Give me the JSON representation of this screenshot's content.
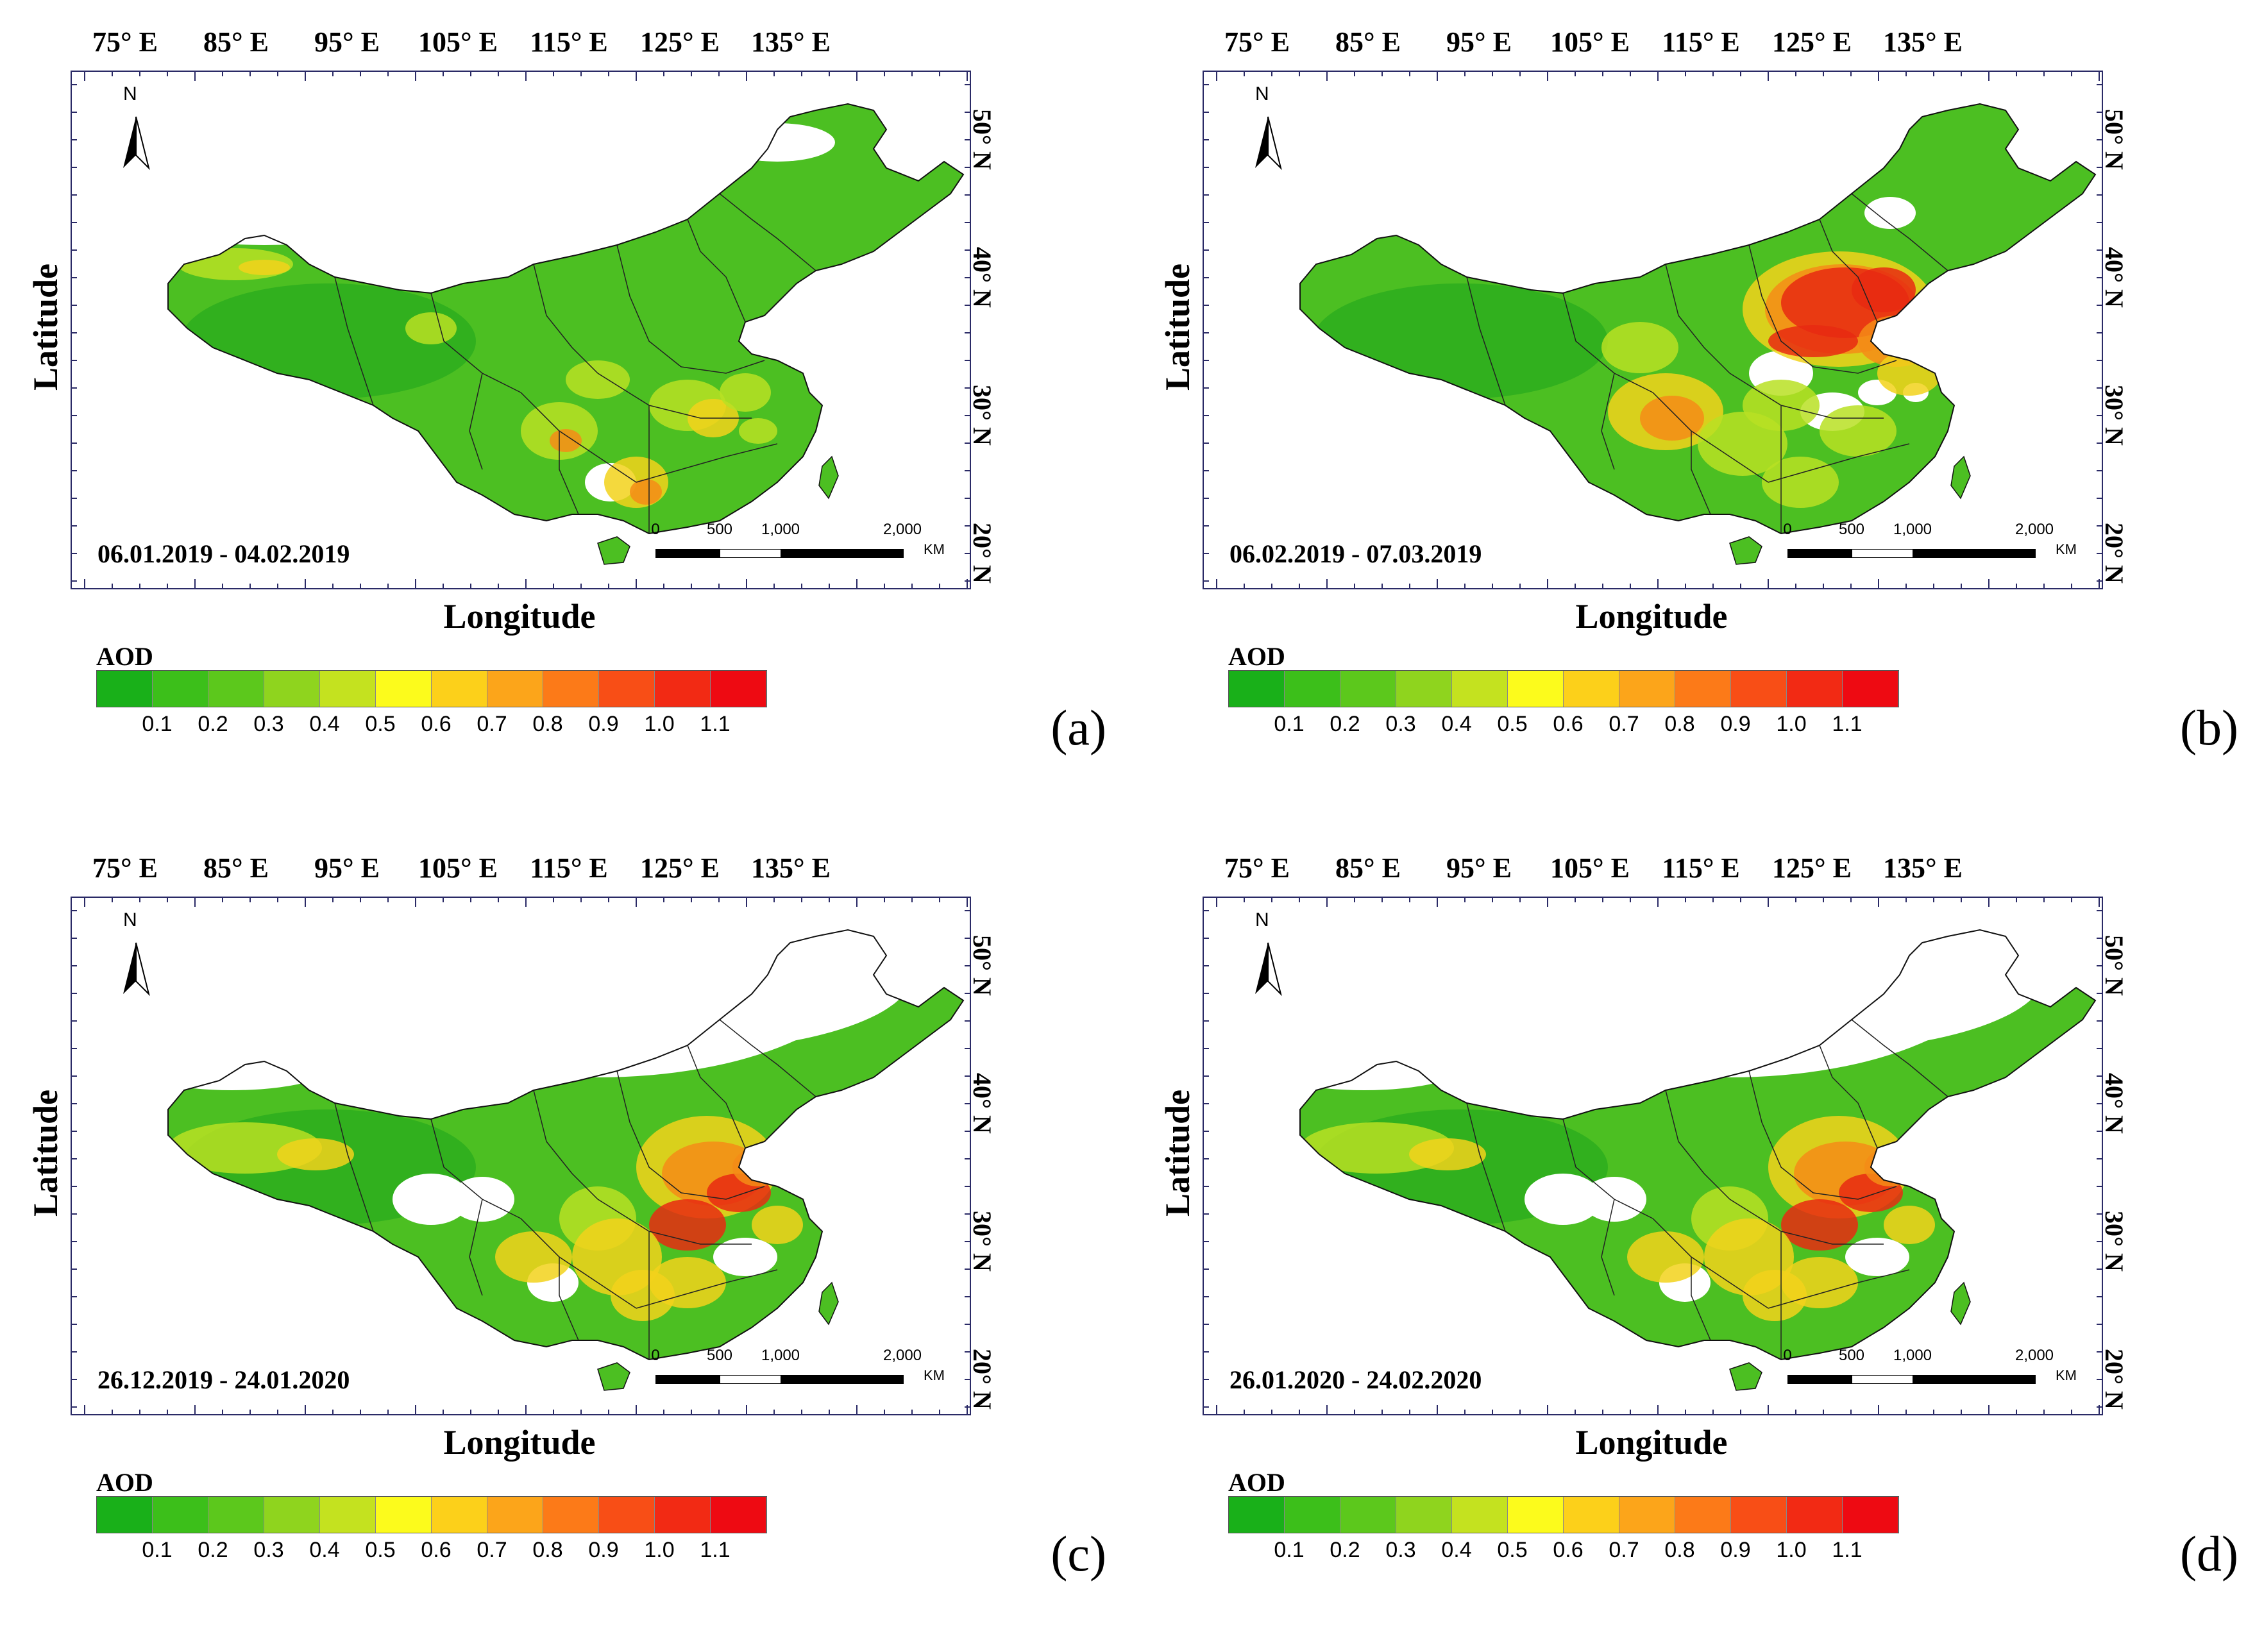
{
  "figure": {
    "lon_labels": [
      "75° E",
      "85° E",
      "95° E",
      "105° E",
      "115° E",
      "125° E",
      "135° E"
    ],
    "lat_labels": [
      "50° N",
      "40° N",
      "30° N",
      "20° N"
    ],
    "x_axis_title": "Longitude",
    "y_axis_title": "Latitude",
    "north_label": "N",
    "scale_labels": [
      "0",
      "500",
      "1,000",
      "2,000"
    ],
    "scale_unit": "KM",
    "legend_title": "AOD",
    "legend_ticks": [
      "0.1",
      "0.2",
      "0.3",
      "0.4",
      "0.5",
      "0.6",
      "0.7",
      "0.8",
      "0.9",
      "1.0",
      "1.1"
    ],
    "legend_colors": [
      "#19b019",
      "#3cbf1a",
      "#5cc81c",
      "#8fd41e",
      "#c4e21f",
      "#fcfb1c",
      "#fcd01a",
      "#fca51a",
      "#fc7a18",
      "#f84e16",
      "#f22a14",
      "#ee0a12"
    ],
    "land_color": "#4cbf22",
    "hotspot_colors": [
      "#b9e023",
      "#f2d21b",
      "#f58c16",
      "#e82a12"
    ],
    "panels": [
      {
        "letter": "(a)",
        "date_range": "06.01.2019 - 04.02.2019",
        "aod_level": "low"
      },
      {
        "letter": "(b)",
        "date_range": "06.02.2019 - 07.03.2019",
        "aod_level": "high"
      },
      {
        "letter": "(c)",
        "date_range": "26.12.2019 - 24.01.2020",
        "aod_level": "medium"
      },
      {
        "letter": "(d)",
        "date_range": "26.01.2020 - 24.02.2020",
        "aod_level": "medium"
      }
    ]
  }
}
